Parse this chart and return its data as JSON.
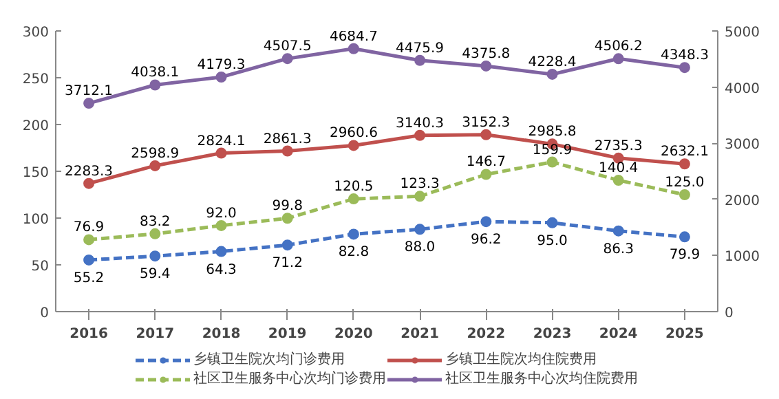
{
  "chart_data": {
    "type": "line",
    "categories": [
      "2016",
      "2017",
      "2018",
      "2019",
      "2020",
      "2021",
      "2022",
      "2023",
      "2024",
      "2025"
    ],
    "ylim": [
      0,
      300
    ],
    "yticks": [
      0,
      50,
      100,
      150,
      200,
      250,
      300
    ],
    "y2lim": [
      0,
      5000
    ],
    "y2ticks": [
      0,
      1000,
      2000,
      3000,
      4000,
      5000
    ],
    "marker": "circle",
    "legend": "bottom",
    "grid": false,
    "series": [
      {
        "name": "乡镇卫生院次均门诊费用",
        "color": "#4472c4",
        "line_style": "dashed",
        "values": [
          55.2,
          59.4,
          64.3,
          71.2,
          82.8,
          88.0,
          96.2,
          95.0,
          86.3,
          79.9
        ],
        "value_labels": [
          "55.2",
          "59.4",
          "64.3",
          "71.2",
          "82.8",
          "88.0",
          "96.2",
          "95.0",
          "86.3",
          "79.9"
        ]
      },
      {
        "name": "社区卫生服务中心次均门诊费用",
        "color": "#9bbb59",
        "line_style": "dashed",
        "values": [
          76.9,
          83.2,
          92.0,
          99.8,
          120.5,
          123.3,
          146.7,
          159.9,
          140.4,
          125.0
        ],
        "value_labels": [
          "76.9",
          "83.2",
          "92.0",
          "99.8",
          "120.5",
          "123.3",
          "146.7",
          "159.9",
          "140.4",
          "125.0"
        ]
      },
      {
        "name": "乡镇卫生院次均住院费用",
        "color": "#c0504d",
        "line_style": "solid",
        "axis": "y2",
        "values": [
          2283.3,
          2598.9,
          2824.1,
          2861.3,
          2960.6,
          3140.3,
          3152.3,
          2985.8,
          2735.3,
          2632.1
        ],
        "value_labels": [
          "2283.3",
          "2598.9",
          "2824.1",
          "2861.3",
          "2960.6",
          "3140.3",
          "3152.3",
          "2985.8",
          "2735.3",
          "2632.1"
        ]
      },
      {
        "name": "社区卫生服务中心次均住院费用",
        "color": "#8064a2",
        "line_style": "solid",
        "axis": "y2",
        "values": [
          3712.1,
          4038.1,
          4179.3,
          4507.5,
          4684.7,
          4475.9,
          4375.8,
          4228.4,
          4506.2,
          4348.3
        ],
        "value_labels": [
          "3712.1",
          "4038.1",
          "4179.3",
          "4507.5",
          "4684.7",
          "4475.9",
          "4375.8",
          "4228.4",
          "4506.2",
          "4348.3"
        ]
      }
    ]
  }
}
